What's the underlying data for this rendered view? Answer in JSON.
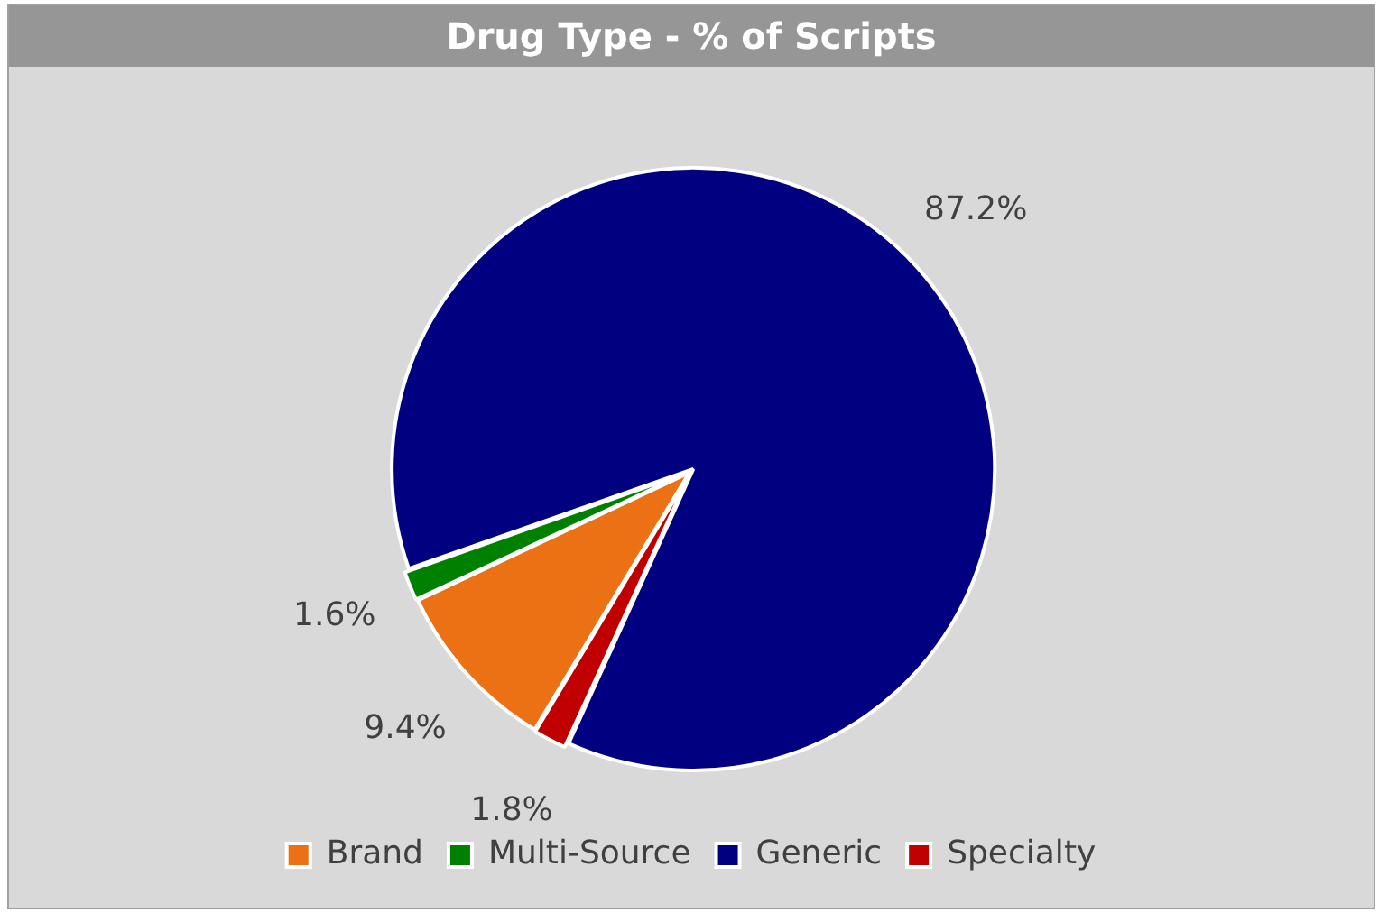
{
  "chart_data": {
    "type": "pie",
    "title": "Drug Type - % of Scripts",
    "categories": [
      "Brand",
      "Multi-Source",
      "Generic",
      "Specialty"
    ],
    "values": [
      9.4,
      1.6,
      87.2,
      1.8
    ],
    "colors": [
      "#ec7014",
      "#008000",
      "#000080",
      "#c00000"
    ],
    "value_labels": [
      "9.4%",
      "1.6%",
      "87.2%",
      "1.8%"
    ],
    "legend": "bottom"
  }
}
